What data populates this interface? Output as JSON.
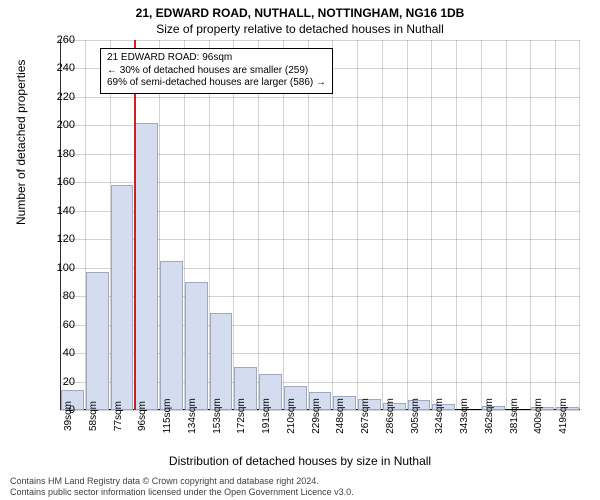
{
  "title_line1": "21, EDWARD ROAD, NUTHALL, NOTTINGHAM, NG16 1DB",
  "title_line2": "Size of property relative to detached houses in Nuthall",
  "ylabel": "Number of detached properties",
  "xlabel": "Distribution of detached houses by size in Nuthall",
  "footer_line1": "Contains HM Land Registry data © Crown copyright and database right 2024.",
  "footer_line2": "Contains public sector information licensed under the Open Government Licence v3.0.",
  "annotation": {
    "line1": "21 EDWARD ROAD: 96sqm",
    "line2": "← 30% of detached houses are smaller (259)",
    "line3": "69% of semi-detached houses are larger (586) →"
  },
  "chart": {
    "type": "histogram",
    "background_color": "#ffffff",
    "bar_fill": "#d4ddf0",
    "bar_border": "#a0a8c0",
    "grid_color": "#808080",
    "marker_color": "#cc2020",
    "marker_x": 96,
    "ylim": [
      0,
      260
    ],
    "ytick_step": 20,
    "x_categories": [
      "39sqm",
      "58sqm",
      "77sqm",
      "96sqm",
      "115sqm",
      "134sqm",
      "153sqm",
      "172sqm",
      "191sqm",
      "210sqm",
      "229sqm",
      "248sqm",
      "267sqm",
      "286sqm",
      "305sqm",
      "324sqm",
      "343sqm",
      "362sqm",
      "381sqm",
      "400sqm",
      "419sqm"
    ],
    "x_start": 39,
    "x_step": 19,
    "values": [
      14,
      97,
      158,
      202,
      105,
      90,
      68,
      30,
      25,
      17,
      13,
      10,
      8,
      5,
      7,
      4,
      0,
      3,
      0,
      2,
      2
    ],
    "bar_count": 21,
    "title_fontsize": 12,
    "label_fontsize": 12,
    "tick_fontsize": 11
  }
}
